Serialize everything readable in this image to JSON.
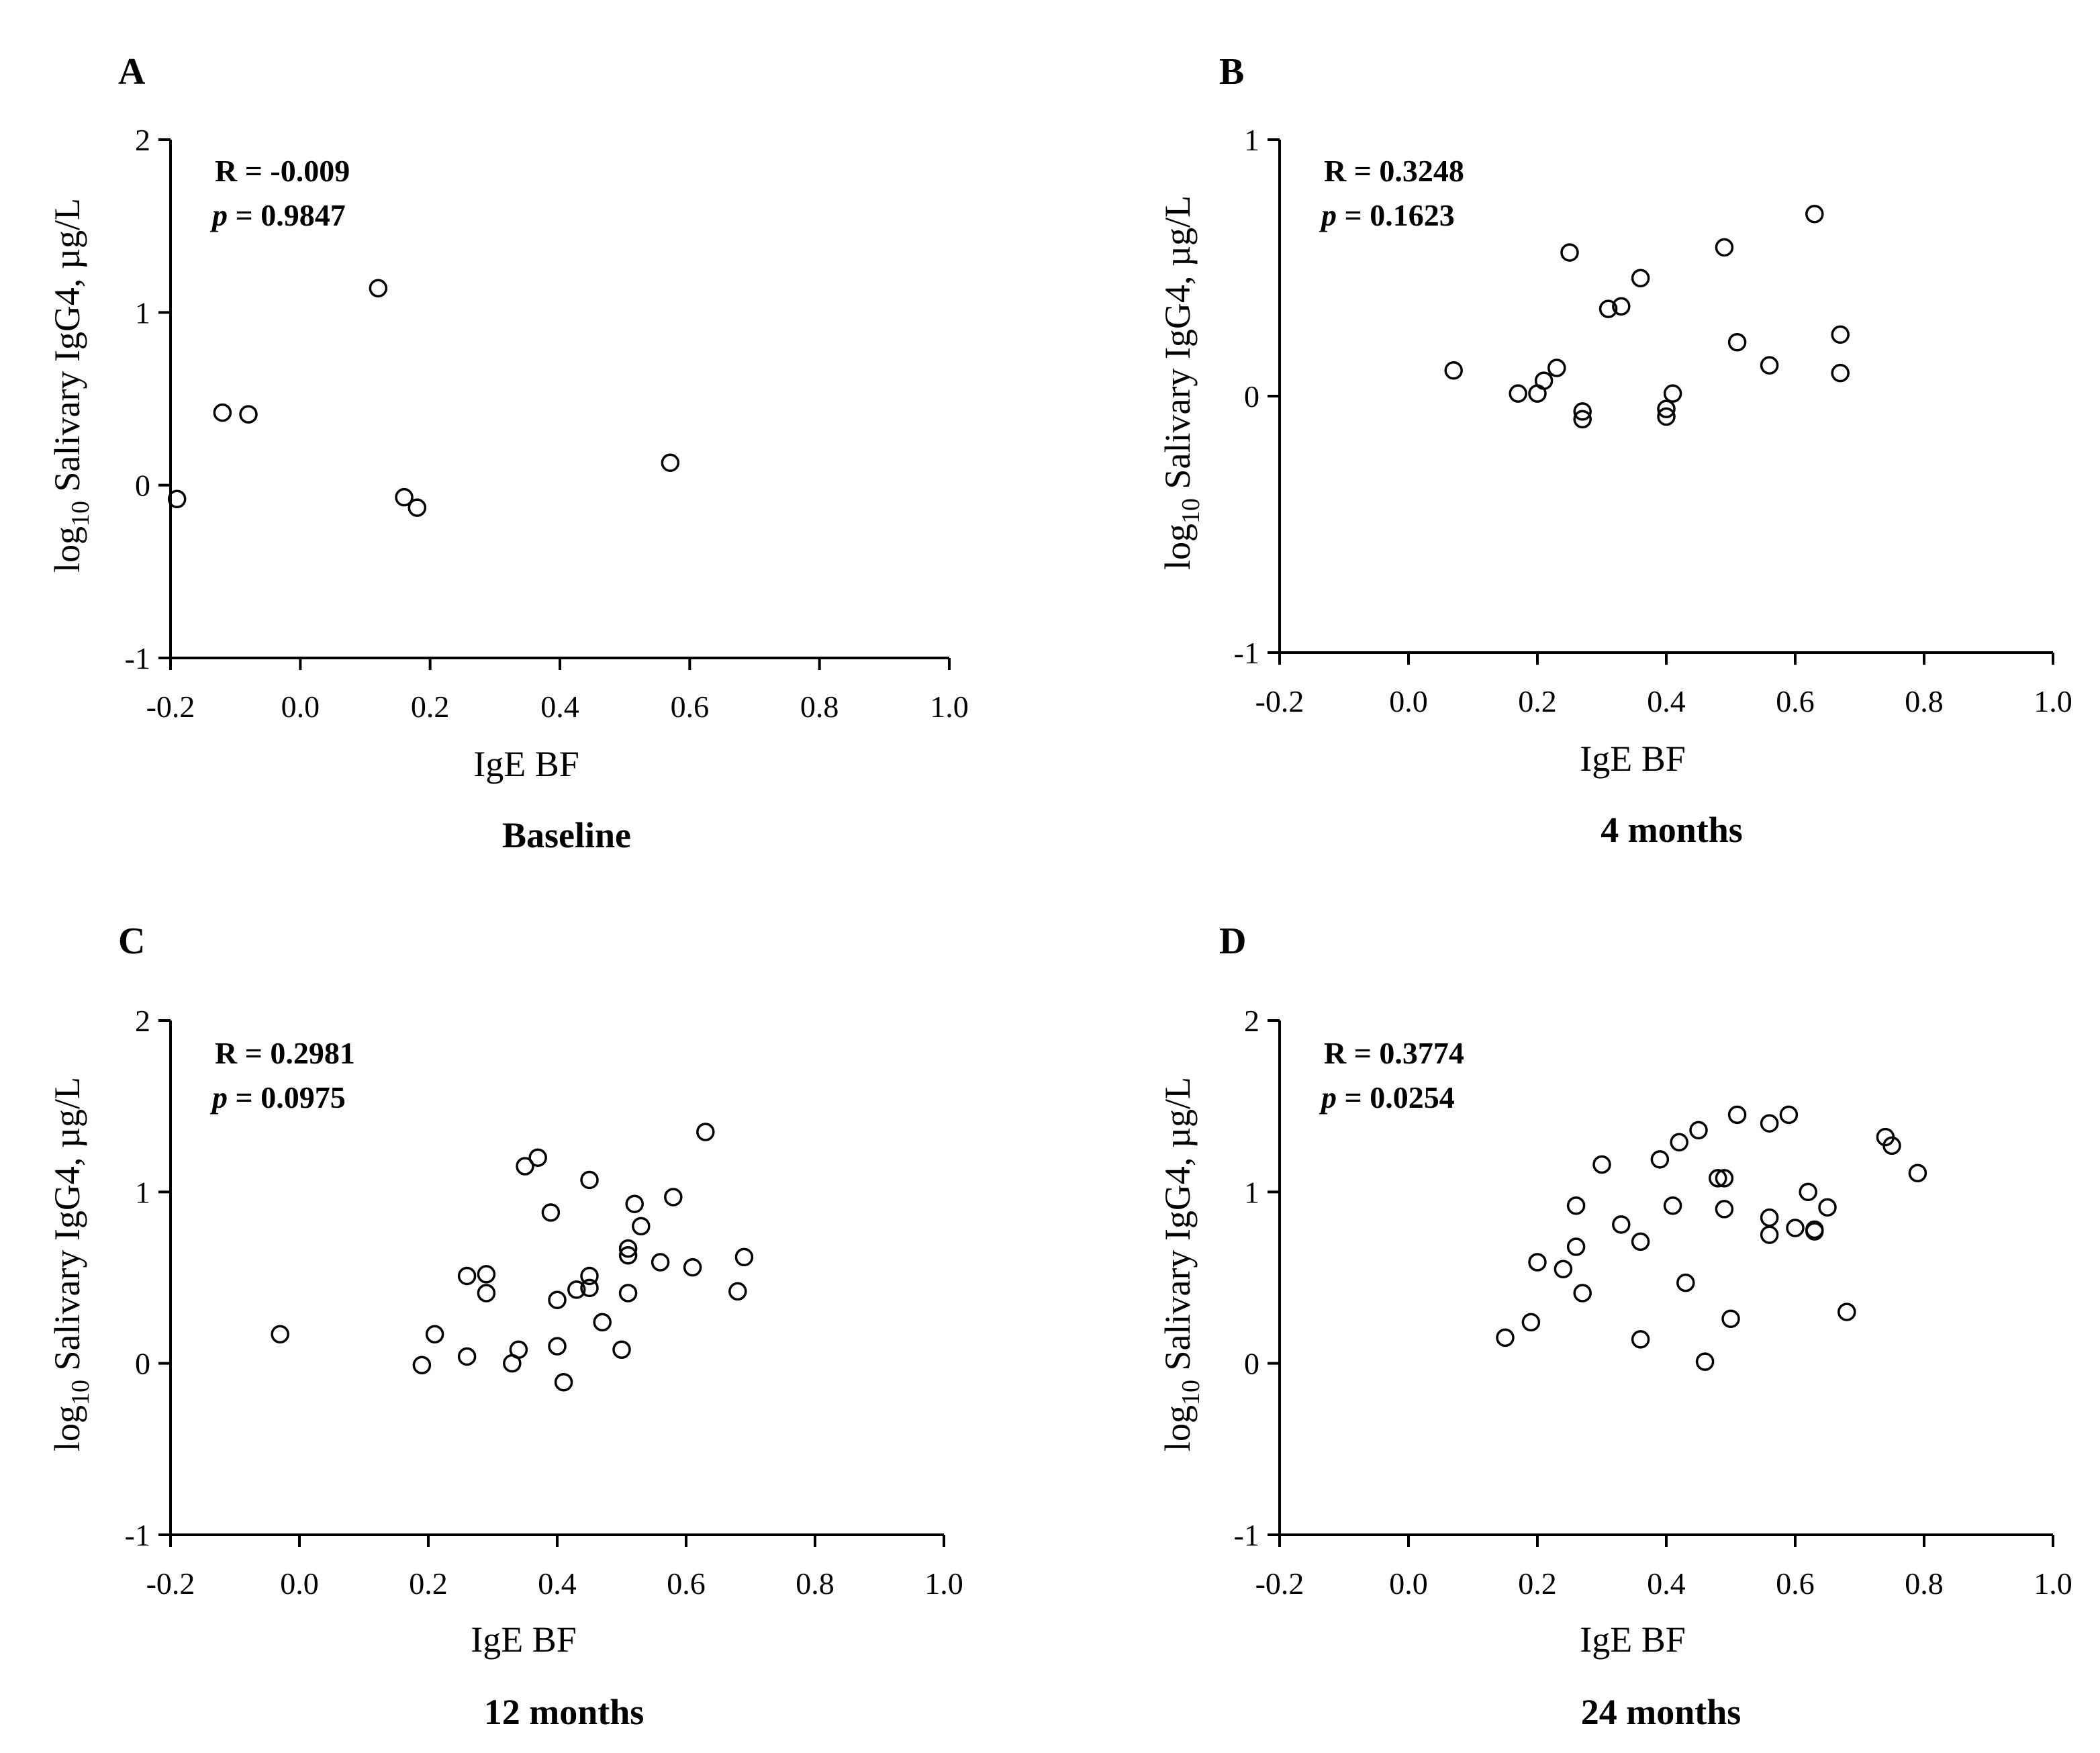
{
  "chart_data": [
    {
      "type": "scatter",
      "panel": "A",
      "caption": "Baseline",
      "xlabel": "IgE BF",
      "ylabel": {
        "prefix": "log",
        "sub": "10",
        "rest": " Salivary IgG4,   µg/L"
      },
      "xlim": [
        -0.2,
        1.0
      ],
      "ylim": [
        -1,
        2
      ],
      "xticks": [
        "-0.2",
        "0.0",
        "0.2",
        "0.4",
        "0.6",
        "0.8",
        "1.0"
      ],
      "yticks": [
        "-1",
        "0",
        "1",
        "2"
      ],
      "stats": {
        "r_text": "R = -0.009",
        "p_label": "p",
        "p_value": " = 0.9847"
      },
      "x": [
        -0.19,
        -0.12,
        -0.08,
        0.12,
        0.16,
        0.18,
        0.57
      ],
      "y": [
        -0.08,
        0.42,
        0.41,
        1.14,
        -0.07,
        -0.13,
        0.13
      ]
    },
    {
      "type": "scatter",
      "panel": "B",
      "caption": "4 months",
      "xlabel": "IgE BF",
      "ylabel": {
        "prefix": "log",
        "sub": "10",
        "rest": " Salivary IgG4,   µg/L"
      },
      "xlim": [
        -0.2,
        1.0
      ],
      "ylim": [
        -1,
        1
      ],
      "xticks": [
        "-0.2",
        "0.0",
        "0.2",
        "0.4",
        "0.6",
        "0.8",
        "1.0"
      ],
      "yticks": [
        "-1",
        "0",
        "1"
      ],
      "stats": {
        "r_text": "R = 0.3248",
        "p_label": "p",
        "p_value": " = 0.1623"
      },
      "x": [
        0.07,
        0.17,
        0.2,
        0.21,
        0.23,
        0.25,
        0.27,
        0.27,
        0.31,
        0.33,
        0.36,
        0.4,
        0.4,
        0.41,
        0.49,
        0.51,
        0.56,
        0.63,
        0.67,
        0.67
      ],
      "y": [
        0.1,
        0.01,
        0.01,
        0.06,
        0.11,
        0.56,
        -0.06,
        -0.09,
        0.34,
        0.35,
        0.46,
        -0.05,
        -0.08,
        0.01,
        0.58,
        0.21,
        0.12,
        0.71,
        0.24,
        0.09
      ]
    },
    {
      "type": "scatter",
      "panel": "C",
      "caption": "12 months",
      "xlabel": "IgE BF",
      "ylabel": {
        "prefix": "log",
        "sub": "10",
        "rest": " Salivary IgG4,   µg/L"
      },
      "xlim": [
        -0.2,
        1.0
      ],
      "ylim": [
        -1,
        2
      ],
      "xticks": [
        "-0.2",
        "0.0",
        "0.2",
        "0.4",
        "0.6",
        "0.8",
        "1.0"
      ],
      "yticks": [
        "-1",
        "0",
        "1",
        "2"
      ],
      "stats": {
        "r_text": "R = 0.2981",
        "p_label": "p",
        "p_value": " = 0.0975"
      },
      "x": [
        -0.03,
        0.19,
        0.21,
        0.26,
        0.26,
        0.29,
        0.29,
        0.33,
        0.34,
        0.35,
        0.37,
        0.39,
        0.4,
        0.4,
        0.41,
        0.43,
        0.45,
        0.45,
        0.45,
        0.47,
        0.5,
        0.51,
        0.51,
        0.51,
        0.52,
        0.53,
        0.56,
        0.58,
        0.61,
        0.63,
        0.68,
        0.69
      ],
      "y": [
        0.17,
        -0.01,
        0.17,
        0.04,
        0.51,
        0.41,
        0.52,
        0.0,
        0.08,
        1.15,
        1.2,
        0.88,
        0.37,
        0.1,
        -0.11,
        0.43,
        0.44,
        0.51,
        1.07,
        0.24,
        0.08,
        0.41,
        0.63,
        0.67,
        0.93,
        0.8,
        0.59,
        0.97,
        0.56,
        1.35,
        0.42,
        0.62
      ]
    },
    {
      "type": "scatter",
      "panel": "D",
      "caption": "24 months",
      "xlabel": "IgE BF",
      "ylabel": {
        "prefix": "log",
        "sub": "10",
        "rest": " Salivary IgG4,   µg/L"
      },
      "xlim": [
        -0.2,
        1.0
      ],
      "ylim": [
        -1,
        2
      ],
      "xticks": [
        "-0.2",
        "0.0",
        "0.2",
        "0.4",
        "0.6",
        "0.8",
        "1.0"
      ],
      "yticks": [
        "-1",
        "0",
        "1",
        "2"
      ],
      "stats": {
        "r_text": "R = 0.3774",
        "p_label": "p",
        "p_value": " = 0.0254"
      },
      "x": [
        0.15,
        0.19,
        0.2,
        0.24,
        0.26,
        0.26,
        0.27,
        0.3,
        0.33,
        0.36,
        0.36,
        0.39,
        0.41,
        0.42,
        0.43,
        0.45,
        0.46,
        0.48,
        0.49,
        0.49,
        0.5,
        0.51,
        0.56,
        0.56,
        0.56,
        0.59,
        0.6,
        0.62,
        0.63,
        0.63,
        0.65,
        0.68,
        0.74,
        0.75,
        0.79
      ],
      "y": [
        0.15,
        0.24,
        0.59,
        0.55,
        0.92,
        0.68,
        0.41,
        1.16,
        0.81,
        0.71,
        0.14,
        1.19,
        0.92,
        1.29,
        0.47,
        1.36,
        0.01,
        1.08,
        1.08,
        0.9,
        0.26,
        1.45,
        0.85,
        0.75,
        1.4,
        1.45,
        0.79,
        1.0,
        0.77,
        0.78,
        0.91,
        0.3,
        1.32,
        1.27,
        1.11
      ]
    }
  ]
}
